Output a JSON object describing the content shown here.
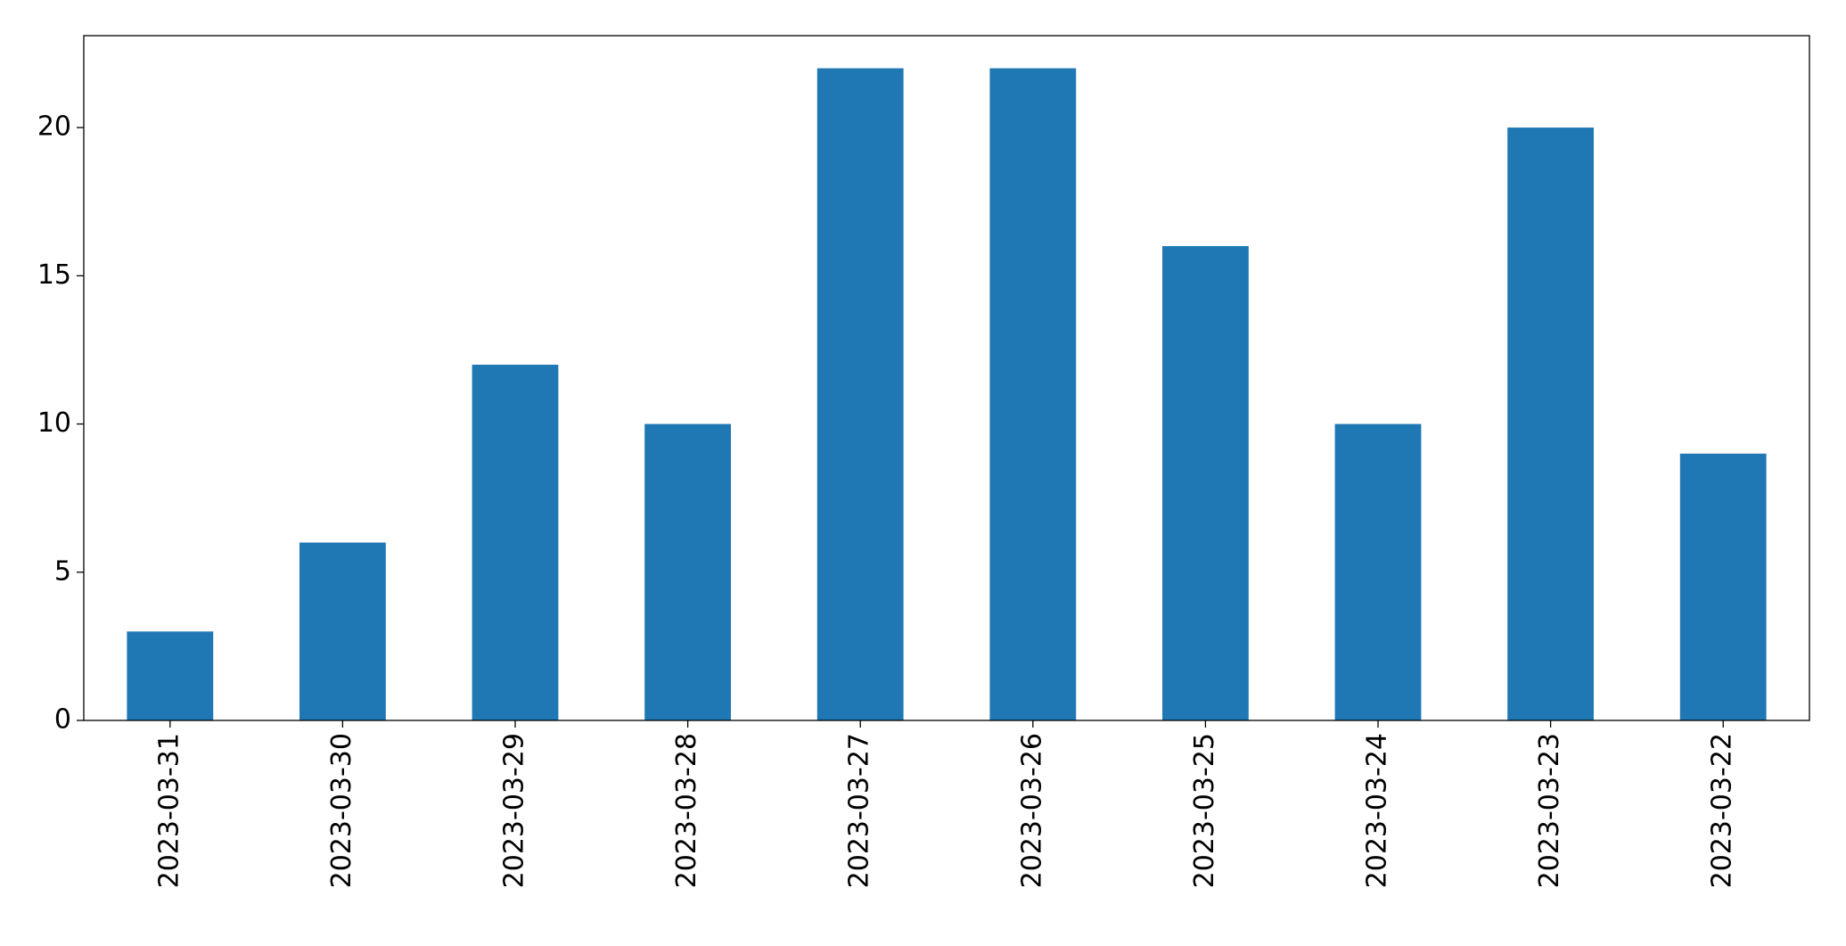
{
  "chart_data": {
    "type": "bar",
    "categories": [
      "2023-03-31",
      "2023-03-30",
      "2023-03-29",
      "2023-03-28",
      "2023-03-27",
      "2023-03-26",
      "2023-03-25",
      "2023-03-24",
      "2023-03-23",
      "2023-03-22"
    ],
    "values": [
      3,
      6,
      12,
      10,
      22,
      22,
      16,
      10,
      20,
      9
    ],
    "color": "#1f77b4",
    "ylim": [
      0,
      23.1
    ],
    "yticks": [
      0,
      5,
      10,
      15,
      20
    ],
    "grid": false
  }
}
